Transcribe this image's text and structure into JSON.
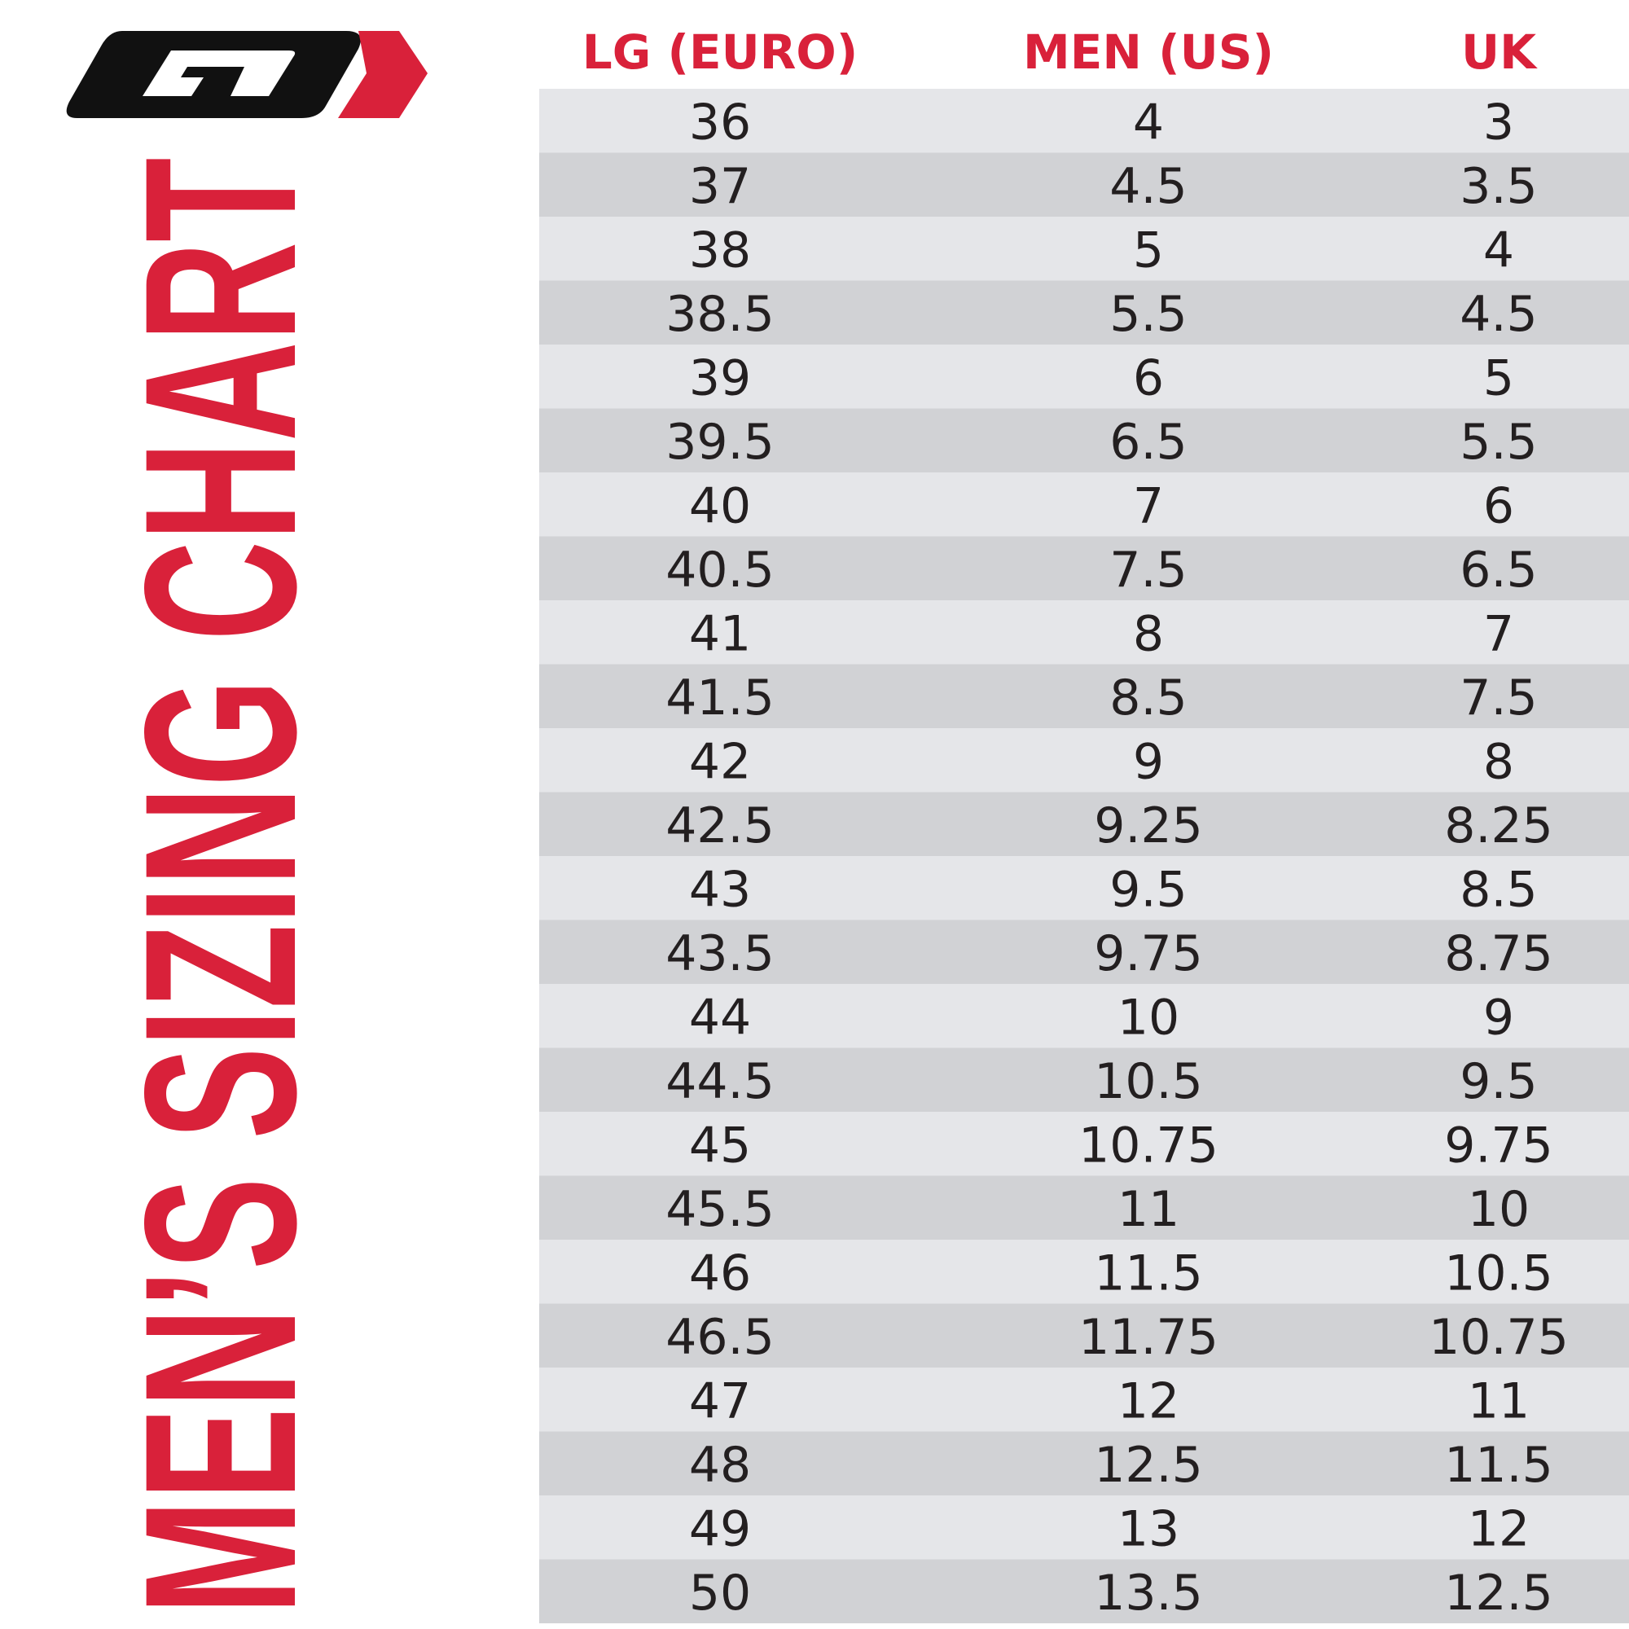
{
  "title": "MEN’S SIZING CHART",
  "table": {
    "headers": [
      "LG (EURO)",
      "MEN (US)",
      "UK"
    ],
    "rows": [
      [
        "36",
        "4",
        "3"
      ],
      [
        "37",
        "4.5",
        "3.5"
      ],
      [
        "38",
        "5",
        "4"
      ],
      [
        "38.5",
        "5.5",
        "4.5"
      ],
      [
        "39",
        "6",
        "5"
      ],
      [
        "39.5",
        "6.5",
        "5.5"
      ],
      [
        "40",
        "7",
        "6"
      ],
      [
        "40.5",
        "7.5",
        "6.5"
      ],
      [
        "41",
        "8",
        "7"
      ],
      [
        "41.5",
        "8.5",
        "7.5"
      ],
      [
        "42",
        "9",
        "8"
      ],
      [
        "42.5",
        "9.25",
        "8.25"
      ],
      [
        "43",
        "9.5",
        "8.5"
      ],
      [
        "43.5",
        "9.75",
        "8.75"
      ],
      [
        "44",
        "10",
        "9"
      ],
      [
        "44.5",
        "10.5",
        "9.5"
      ],
      [
        "45",
        "10.75",
        "9.75"
      ],
      [
        "45.5",
        "11",
        "10"
      ],
      [
        "46",
        "11.5",
        "10.5"
      ],
      [
        "46.5",
        "11.75",
        "10.75"
      ],
      [
        "47",
        "12",
        "11"
      ],
      [
        "48",
        "12.5",
        "11.5"
      ],
      [
        "49",
        "13",
        "12"
      ],
      [
        "50",
        "13.5",
        "12.5"
      ]
    ]
  }
}
